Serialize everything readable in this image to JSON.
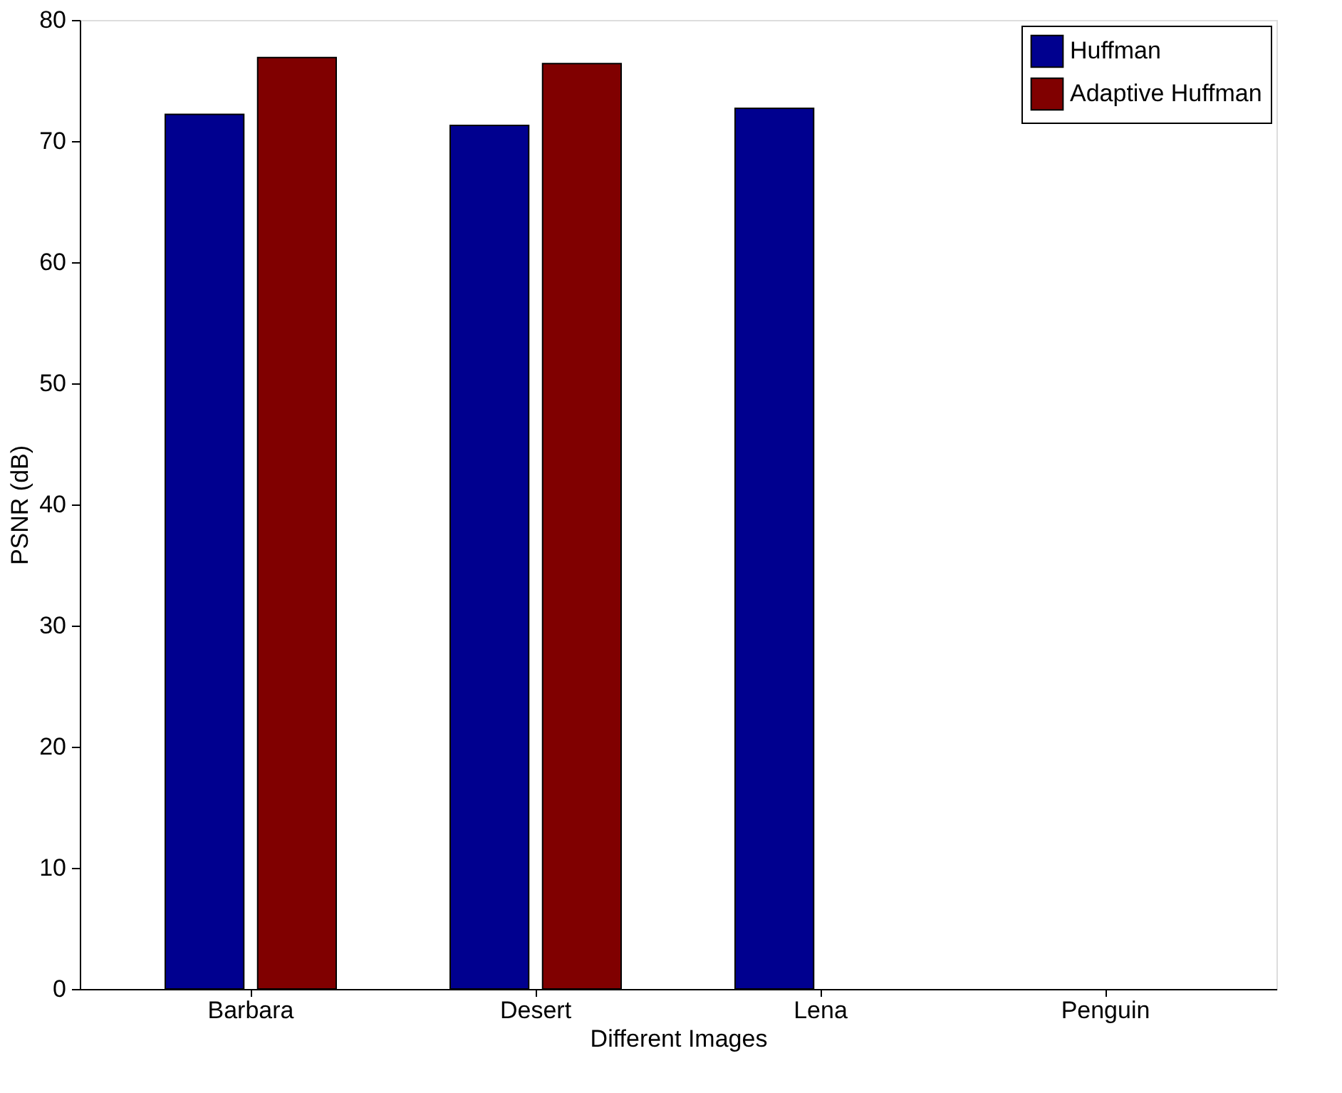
{
  "chart_data": {
    "type": "bar",
    "xlabel": "Different Images",
    "ylabel": "PSNR (dB)",
    "categories": [
      "Barbara",
      "Desert",
      "Lena",
      "Penguin"
    ],
    "series": [
      {
        "name": "Huffman",
        "color": "#00008f",
        "values": [
          72.2,
          71.3,
          72.7,
          null
        ]
      },
      {
        "name": "Adaptive Huffman",
        "color": "#800000",
        "values": [
          76.9,
          76.4,
          null,
          null
        ]
      }
    ],
    "ylim": [
      0,
      80
    ],
    "yticks": [
      0,
      10,
      20,
      30,
      40,
      50,
      60,
      70,
      80
    ],
    "grid": false,
    "legend": "top right"
  }
}
